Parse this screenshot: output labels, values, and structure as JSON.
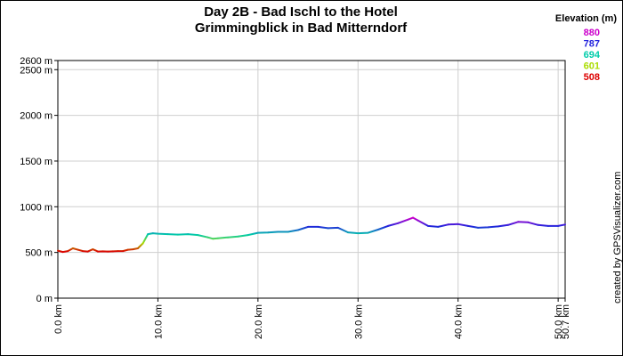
{
  "chart_data": {
    "type": "line",
    "title_lines": [
      "Day 2B - Bad Ischl to the  Hotel",
      "Grimmingblick in Bad Mitterndorf"
    ],
    "xlabel": "",
    "ylabel": "",
    "x_unit": "km",
    "y_unit": "m",
    "xlim": [
      0,
      50.7
    ],
    "ylim": [
      0,
      2600
    ],
    "x_ticks": [
      {
        "value": 0,
        "label": "0.0 km"
      },
      {
        "value": 10,
        "label": "10.0 km"
      },
      {
        "value": 20,
        "label": "20.0 km"
      },
      {
        "value": 30,
        "label": "30.0 km"
      },
      {
        "value": 40,
        "label": "40.0 km"
      },
      {
        "value": 50,
        "label": "50.0 km"
      },
      {
        "value": 50.7,
        "label": "50.7 km"
      }
    ],
    "y_ticks": [
      {
        "value": 0,
        "label": "0 m"
      },
      {
        "value": 500,
        "label": "500 m"
      },
      {
        "value": 1000,
        "label": "1000 m"
      },
      {
        "value": 1500,
        "label": "1500 m"
      },
      {
        "value": 2000,
        "label": "2000 m"
      },
      {
        "value": 2500,
        "label": "2500 m"
      },
      {
        "value": 2600,
        "label": "2600 m"
      }
    ],
    "grid": true,
    "legend": {
      "title": "Elevation (m)",
      "placement": "top-right",
      "entries": [
        {
          "label": "880",
          "color": "#cc00cc"
        },
        {
          "label": "787",
          "color": "#2222dd"
        },
        {
          "label": "694",
          "color": "#00ccaa"
        },
        {
          "label": "601",
          "color": "#aadd00"
        },
        {
          "label": "508",
          "color": "#dd0000"
        }
      ]
    },
    "series": [
      {
        "x": [
          0,
          0.5,
          1,
          1.5,
          2,
          2.5,
          3,
          3.5,
          4,
          4.5,
          5,
          5.5,
          6,
          6.5,
          7,
          7.5,
          8,
          8.5,
          9,
          9.5,
          10,
          11,
          12,
          13,
          14,
          15,
          15.5,
          16,
          17,
          18,
          19,
          20,
          21,
          22,
          23,
          24,
          25,
          26,
          27,
          28,
          29,
          30,
          31,
          32,
          33,
          34,
          35,
          35.5,
          36,
          37,
          38,
          39,
          40,
          41,
          42,
          43,
          44,
          45,
          46,
          47,
          48,
          49,
          50,
          50.7
        ],
        "y": [
          520,
          505,
          515,
          545,
          530,
          515,
          510,
          535,
          510,
          512,
          510,
          512,
          515,
          515,
          530,
          535,
          545,
          600,
          700,
          710,
          705,
          700,
          695,
          700,
          690,
          665,
          650,
          655,
          665,
          675,
          690,
          715,
          718,
          725,
          725,
          745,
          780,
          780,
          765,
          770,
          720,
          710,
          715,
          750,
          790,
          820,
          860,
          880,
          850,
          790,
          780,
          805,
          810,
          790,
          770,
          775,
          785,
          800,
          835,
          830,
          800,
          790,
          790,
          805
        ]
      }
    ]
  },
  "credit": "created by GPSVisualizer.com"
}
